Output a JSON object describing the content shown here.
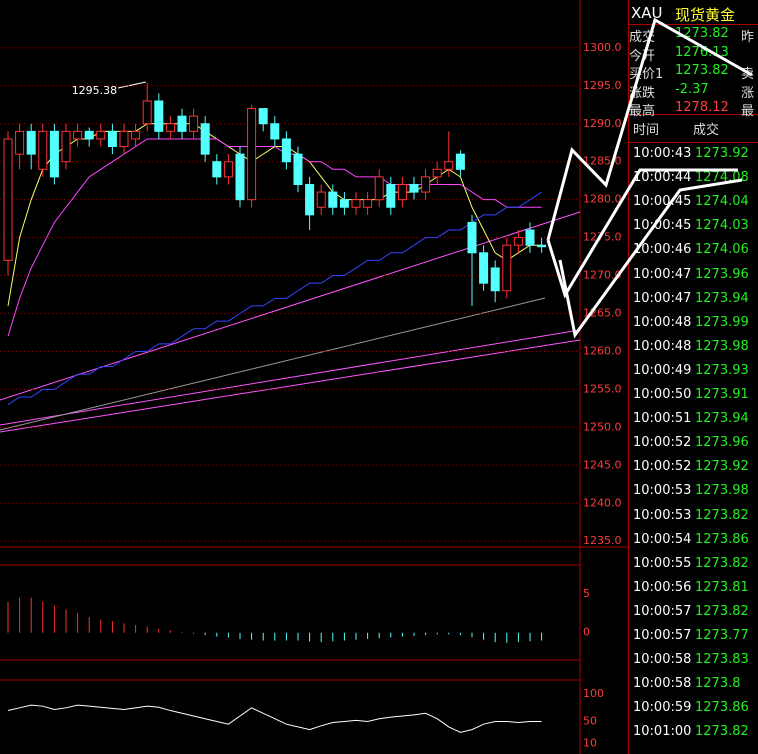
{
  "chart_data": {
    "type": "candlestick",
    "open": [
      1272,
      1286,
      1289,
      1284,
      1289,
      1285,
      1288,
      1289,
      1288,
      1289,
      1287,
      1288,
      1290,
      1293,
      1289,
      1291,
      1289,
      1290,
      1285,
      1283,
      1286,
      1280,
      1292,
      1290,
      1288,
      1286,
      1282,
      1279,
      1281,
      1280,
      1279,
      1279,
      1280,
      1282,
      1280,
      1282,
      1281,
      1283,
      1284,
      1286,
      1277,
      1273,
      1271,
      1268,
      1274,
      1276,
      1274
    ],
    "close": [
      1288,
      1289,
      1286,
      1289,
      1283,
      1289,
      1289,
      1288,
      1289,
      1287,
      1289,
      1289,
      1293,
      1289,
      1290,
      1289,
      1291,
      1286,
      1283,
      1285,
      1280,
      1292,
      1290,
      1288,
      1285,
      1282,
      1278,
      1281,
      1279,
      1279,
      1280,
      1280,
      1283,
      1279,
      1282,
      1281,
      1283,
      1284,
      1285,
      1284,
      1273,
      1269,
      1268,
      1274,
      1275,
      1274,
      1273.8
    ],
    "high": [
      1289,
      1290,
      1290,
      1290,
      1290,
      1290,
      1290,
      1289.5,
      1290,
      1290,
      1290,
      1290,
      1295.38,
      1294,
      1291,
      1292,
      1292,
      1291,
      1286,
      1286,
      1287,
      1292.5,
      1292,
      1291,
      1289,
      1287,
      1283,
      1282,
      1282,
      1281,
      1281,
      1281,
      1284,
      1283,
      1283,
      1283,
      1284,
      1285,
      1289,
      1286.5,
      1278,
      1274,
      1272,
      1275,
      1276,
      1277,
      1275
    ],
    "low": [
      1270,
      1284,
      1284,
      1283,
      1282,
      1284,
      1287,
      1287,
      1287,
      1286,
      1286,
      1287,
      1289,
      1288,
      1288,
      1288,
      1288,
      1285,
      1282,
      1282,
      1279,
      1279,
      1289,
      1287,
      1284,
      1281,
      1276,
      1278,
      1278,
      1278,
      1278,
      1278,
      1279,
      1278,
      1279,
      1280,
      1280,
      1282,
      1283,
      1283,
      1266,
      1268,
      1266.5,
      1267,
      1273,
      1273,
      1273
    ],
    "up_color": "#ff3232",
    "down_color": "#54ffff",
    "lines": [
      {
        "color": "#ffff66",
        "values": [
          1266,
          1275,
          1280,
          1284,
          1286,
          1287,
          1288,
          1288,
          1289,
          1289,
          1289,
          1289,
          1290,
          1290,
          1290,
          1290,
          1290,
          1289,
          1288,
          1287,
          1286,
          1285,
          1286,
          1287,
          1287,
          1286,
          1285,
          1283,
          1281,
          1280,
          1280,
          1280,
          1280,
          1281,
          1281,
          1281,
          1282,
          1283,
          1284,
          1283,
          1279,
          1276,
          1273,
          1272,
          1273,
          1274,
          1274
        ]
      },
      {
        "color": "#ff44ff",
        "values": [
          1262,
          1267,
          1271,
          1274,
          1277,
          1279,
          1281,
          1283,
          1284,
          1285,
          1286,
          1287,
          1288,
          1288,
          1288,
          1288,
          1288,
          1288,
          1288,
          1287,
          1287,
          1287,
          1287,
          1287,
          1286,
          1286,
          1285,
          1285,
          1284,
          1284,
          1283,
          1283,
          1283,
          1282,
          1282,
          1282,
          1282,
          1282,
          1282,
          1282,
          1281,
          1280,
          1280,
          1279,
          1279,
          1279,
          1279
        ]
      },
      {
        "color": "#3344ff",
        "values": [
          1253,
          1254,
          1254,
          1255,
          1255,
          1256,
          1257,
          1257,
          1258,
          1258,
          1259,
          1260,
          1260,
          1261,
          1261,
          1262,
          1263,
          1263,
          1264,
          1264,
          1265,
          1266,
          1266,
          1267,
          1267,
          1268,
          1269,
          1269,
          1270,
          1270,
          1271,
          1272,
          1272,
          1273,
          1273,
          1274,
          1275,
          1275,
          1276,
          1276,
          1277,
          1278,
          1278,
          1279,
          1279,
          1280,
          1281
        ]
      }
    ],
    "high_label": 1295.38,
    "ylim": [
      1234.5,
      1301.3
    ],
    "yticks": [
      {
        "value": 1300,
        "label": "1300.0"
      },
      {
        "value": 1295,
        "label": "1295.0"
      },
      {
        "value": 1290,
        "label": "1290.0"
      },
      {
        "value": 1285,
        "label": "1285.0"
      },
      {
        "value": 1280,
        "label": "1280.0"
      },
      {
        "value": 1275,
        "label": "1275.0"
      },
      {
        "value": 1270,
        "label": "1270.0"
      },
      {
        "value": 1265,
        "label": "1265.0"
      },
      {
        "value": 1260,
        "label": "1260.0"
      },
      {
        "value": 1255,
        "label": "1255.0"
      },
      {
        "value": 1250,
        "label": "1250.0"
      },
      {
        "value": 1245,
        "label": "1245.0"
      },
      {
        "value": 1240,
        "label": "1240.0"
      },
      {
        "value": 1235,
        "label": "1235.0"
      }
    ],
    "grid": true,
    "macd": {
      "values": [
        4,
        4.5,
        4.5,
        4,
        3.5,
        3,
        2.5,
        2,
        1.7,
        1.5,
        1.2,
        1,
        0.8,
        0.5,
        0.3,
        0.1,
        -0.1,
        -0.3,
        -0.5,
        -0.6,
        -0.8,
        -0.9,
        -1,
        -1,
        -1,
        -1,
        -1.1,
        -1.2,
        -1.1,
        -1,
        -0.9,
        -0.8,
        -0.7,
        -0.6,
        -0.5,
        -0.4,
        -0.3,
        -0.2,
        -0.2,
        -0.3,
        -0.6,
        -0.9,
        -1.2,
        -1.3,
        -1.2,
        -1.1,
        -1.0
      ],
      "ylim": [
        -3.5,
        8.7
      ],
      "yticks": [
        5,
        0
      ]
    },
    "rsi": {
      "color": "#ffffff",
      "values": [
        70,
        75,
        80,
        78,
        72,
        75,
        80,
        78,
        76,
        74,
        72,
        75,
        78,
        76,
        70,
        65,
        60,
        55,
        50,
        45,
        60,
        75,
        65,
        55,
        45,
        40,
        35,
        42,
        48,
        50,
        52,
        50,
        55,
        58,
        60,
        62,
        65,
        55,
        40,
        30,
        35,
        45,
        50,
        50,
        48,
        50,
        50
      ],
      "ylim": [
        -6,
        126
      ],
      "yticks": [
        100,
        50,
        10
      ]
    }
  },
  "quote_panel": {
    "symbol": "XAU",
    "name": "现货黄金",
    "rows": [
      {
        "label": "成交",
        "value": 1273.82,
        "side": "昨"
      },
      {
        "label": "今开",
        "value": 1276.13
      },
      {
        "label": "买价1",
        "value": 1273.82,
        "side": "卖"
      },
      {
        "label": "涨跌",
        "value": -2.37,
        "side": "涨"
      },
      {
        "label": "最高",
        "value": 1278.12,
        "side": "最"
      }
    ]
  },
  "trades": {
    "headers": [
      "时间",
      "成交"
    ],
    "rows": [
      [
        "10:00:43",
        1273.92
      ],
      [
        "10:00:44",
        1274.08
      ],
      [
        "10:00:45",
        1274.04
      ],
      [
        "10:00:45",
        1274.03
      ],
      [
        "10:00:46",
        1274.06
      ],
      [
        "10:00:47",
        1273.96
      ],
      [
        "10:00:47",
        1273.94
      ],
      [
        "10:00:48",
        1273.99
      ],
      [
        "10:00:48",
        1273.98
      ],
      [
        "10:00:49",
        1273.93
      ],
      [
        "10:00:50",
        1273.91
      ],
      [
        "10:00:51",
        1273.94
      ],
      [
        "10:00:52",
        1273.96
      ],
      [
        "10:00:52",
        1273.92
      ],
      [
        "10:00:53",
        1273.98
      ],
      [
        "10:00:53",
        1273.82
      ],
      [
        "10:00:54",
        1273.86
      ],
      [
        "10:00:55",
        1273.82
      ],
      [
        "10:00:56",
        1273.81
      ],
      [
        "10:00:57",
        1273.82
      ],
      [
        "10:00:57",
        1273.77
      ],
      [
        "10:00:58",
        1273.83
      ],
      [
        "10:00:58",
        1273.8
      ],
      [
        "10:00:59",
        1273.86
      ],
      [
        "10:01:00",
        1273.82
      ]
    ]
  }
}
